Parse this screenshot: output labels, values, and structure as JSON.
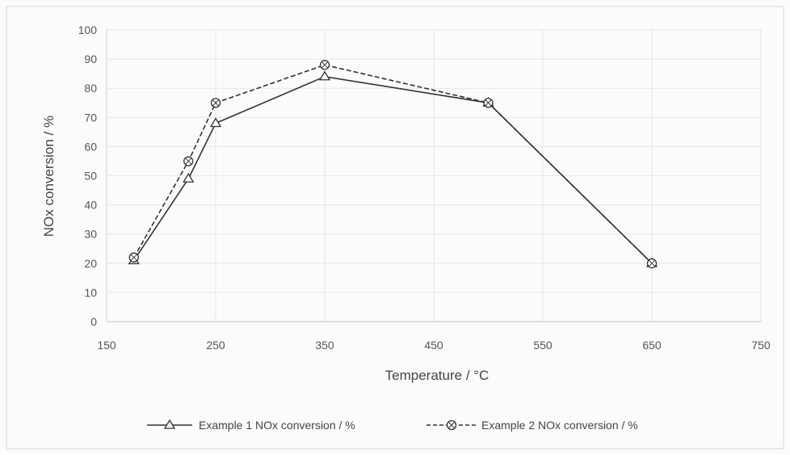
{
  "chart_data": {
    "type": "line",
    "title": "",
    "xlabel": "Temperature / °C",
    "ylabel": "NOx conversion / %",
    "xlim": [
      150,
      750
    ],
    "ylim": [
      0,
      100
    ],
    "x_ticks": [
      150,
      250,
      350,
      450,
      550,
      650,
      750
    ],
    "x_tick_labels": [
      "150",
      "250",
      "350",
      "450",
      "550",
      "650",
      "750"
    ],
    "y_ticks": [
      0,
      10,
      20,
      30,
      40,
      50,
      60,
      70,
      80,
      90,
      100
    ],
    "y_tick_labels": [
      "0",
      "10",
      "20",
      "30",
      "40",
      "50",
      "60",
      "70",
      "80",
      "90",
      "100"
    ],
    "grid": true,
    "legend_position": "bottom",
    "series": [
      {
        "name": "Example 1 NOx conversion / %",
        "marker": "triangle",
        "line_style": "solid",
        "color": "#333333",
        "x": [
          175,
          225,
          250,
          350,
          500,
          650
        ],
        "y": [
          21,
          49,
          68,
          84,
          75,
          20
        ]
      },
      {
        "name": "Example 2 NOx conversion / %",
        "marker": "crossed-circle",
        "line_style": "dashed",
        "color": "#333333",
        "x": [
          175,
          225,
          250,
          350,
          500,
          650
        ],
        "y": [
          22,
          55,
          75,
          88,
          75,
          20
        ]
      }
    ]
  }
}
